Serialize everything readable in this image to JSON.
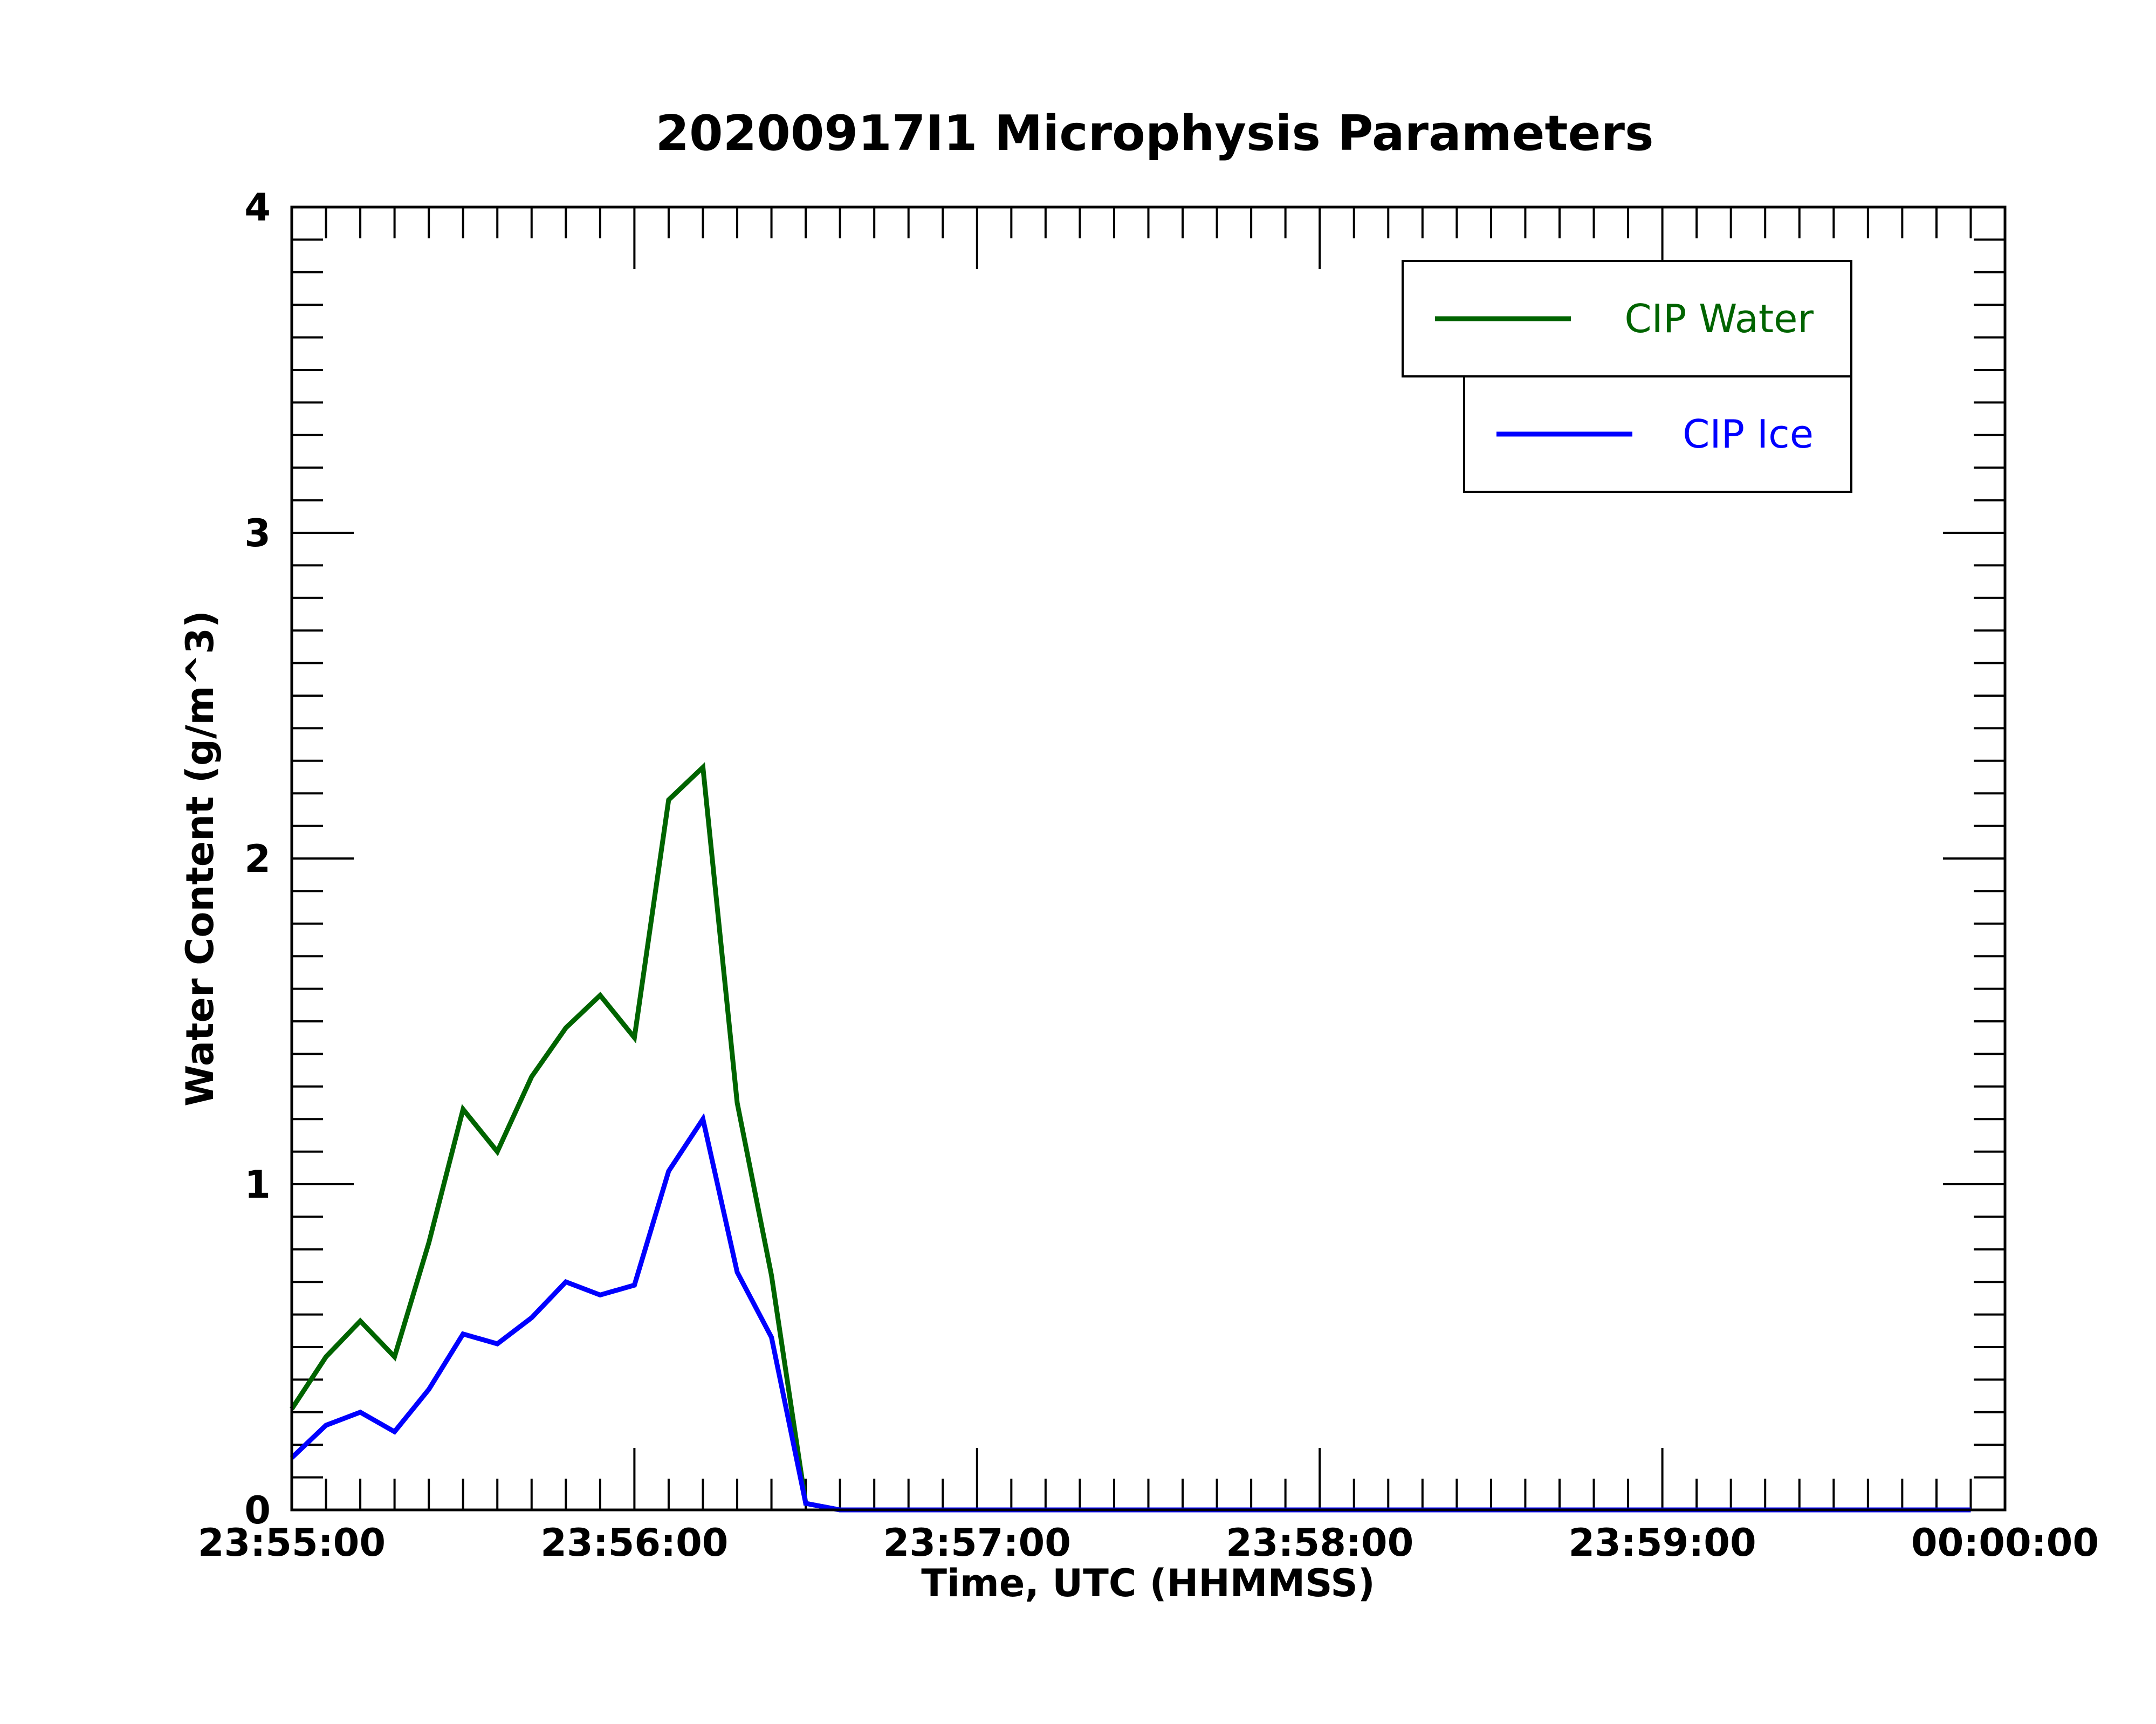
{
  "chart_data": {
    "type": "line",
    "title": "20200917I1 Microphysis Parameters",
    "xlabel": "Time, UTC (HHMMSS)",
    "ylabel": "Water Content (g/m^3)",
    "xlim": [
      "23:55:00",
      "00:00:00"
    ],
    "ylim": [
      0,
      4
    ],
    "x_tick_labels": [
      "23:55:00",
      "23:56:00",
      "23:57:00",
      "23:58:00",
      "23:59:00",
      "00:00:00"
    ],
    "y_tick_labels": [
      "0",
      "1",
      "2",
      "3",
      "4"
    ],
    "grid": false,
    "legend_position": "top-right",
    "x": [
      "23:55:00",
      "23:55:06",
      "23:55:12",
      "23:55:18",
      "23:55:24",
      "23:55:30",
      "23:55:36",
      "23:55:42",
      "23:55:48",
      "23:55:54",
      "23:56:00",
      "23:56:06",
      "23:56:12",
      "23:56:18",
      "23:56:24",
      "23:56:30",
      "23:56:36",
      "23:56:42",
      "23:56:48",
      "23:56:54",
      "23:57:00",
      "23:57:06",
      "23:57:12",
      "23:57:18",
      "23:57:24",
      "23:57:30",
      "23:57:36",
      "23:57:42",
      "23:57:48",
      "23:57:54",
      "23:58:00",
      "23:58:06",
      "23:58:12",
      "23:58:18",
      "23:58:24",
      "23:58:30",
      "23:58:36",
      "23:58:42",
      "23:58:48",
      "23:58:54",
      "23:59:00",
      "23:59:06",
      "23:59:12",
      "23:59:18",
      "23:59:24",
      "23:59:30",
      "23:59:36",
      "23:59:42",
      "23:59:48",
      "23:59:54"
    ],
    "series": [
      {
        "name": "CIP Water",
        "color": "#006400",
        "values": [
          0.31,
          0.47,
          0.58,
          0.47,
          0.82,
          1.23,
          1.1,
          1.33,
          1.48,
          1.58,
          1.45,
          2.18,
          2.28,
          1.25,
          0.72,
          0.02,
          0.0,
          0.0,
          0.0,
          0.0,
          0.0,
          0.0,
          0.0,
          0.0,
          0.0,
          0.0,
          0.0,
          0.0,
          0.0,
          0.0,
          0.0,
          0.0,
          0.0,
          0.0,
          0.0,
          0.0,
          0.0,
          0.0,
          0.0,
          0.0,
          0.0,
          0.0,
          0.0,
          0.0,
          0.0,
          0.0,
          0.0,
          0.0,
          0.0,
          0.0
        ]
      },
      {
        "name": "CIP Ice",
        "color": "#0000ff",
        "values": [
          0.16,
          0.26,
          0.3,
          0.24,
          0.37,
          0.54,
          0.51,
          0.59,
          0.7,
          0.66,
          0.69,
          1.04,
          1.2,
          0.73,
          0.53,
          0.02,
          0.0,
          0.0,
          0.0,
          0.0,
          0.0,
          0.0,
          0.0,
          0.0,
          0.0,
          0.0,
          0.0,
          0.0,
          0.0,
          0.0,
          0.0,
          0.0,
          0.0,
          0.0,
          0.0,
          0.0,
          0.0,
          0.0,
          0.0,
          0.0,
          0.0,
          0.0,
          0.0,
          0.0,
          0.0,
          0.0,
          0.0,
          0.0,
          0.0,
          0.0
        ]
      }
    ]
  }
}
